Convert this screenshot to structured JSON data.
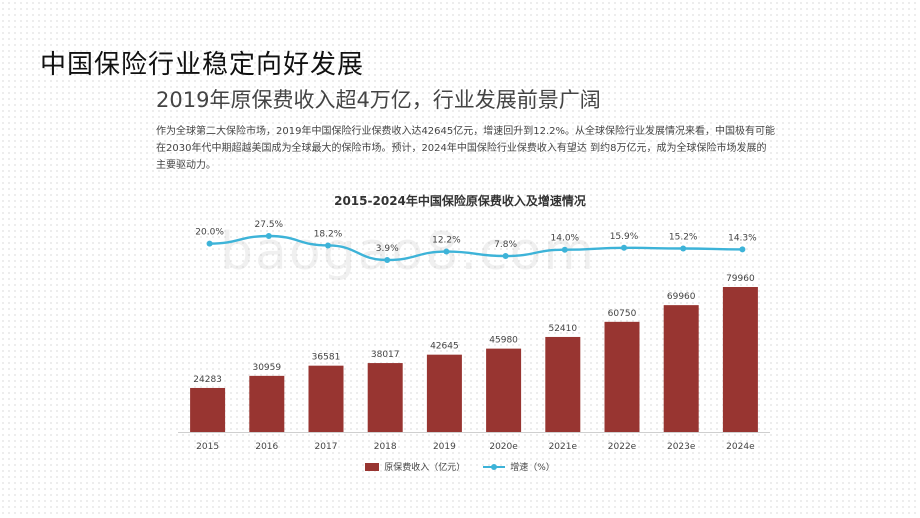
{
  "slide": {
    "title": "中国保险行业稳定向好发展",
    "subtitle": "2019年原保费收入超4万亿，行业发展前景广阔",
    "intro": "作为全球第二大保险市场，2019年中国保险行业保费收入达42645亿元，增速回升到12.2%。从全球保险行业发展情况来看，中国极有可能在2030年代中期超越美国成为全球最大的保险市场。预计，2024年中国保险行业保费收入有望达 到约8万亿元，成为全球保险市场发展的主要驱动力。",
    "watermark": "baogao8.com"
  },
  "colors": {
    "bar": "#983531",
    "line": "#3db3d8"
  },
  "chart_data": {
    "type": "bar",
    "title": "2015-2024年中国保险原保费收入及增速情况",
    "categories": [
      "2015",
      "2016",
      "2017",
      "2018",
      "2019",
      "2020e",
      "2021e",
      "2022e",
      "2023e",
      "2024e"
    ],
    "series": [
      {
        "name": "原保费收入（亿元）",
        "type": "bar",
        "values": [
          24283,
          30959,
          36581,
          38017,
          42645,
          45980,
          52410,
          60750,
          69960,
          79960
        ],
        "labels": [
          "24283",
          "30959",
          "36581",
          "38017",
          "42645",
          "45980",
          "52410",
          "60750",
          "69960",
          "79960"
        ]
      },
      {
        "name": "增速（%）",
        "type": "line",
        "values": [
          20.0,
          27.5,
          18.2,
          3.9,
          12.2,
          7.8,
          14.0,
          15.9,
          15.2,
          14.3
        ],
        "labels": [
          "20.0%",
          "27.5%",
          "18.2%",
          "3.9%",
          "12.2%",
          "7.8%",
          "14.0%",
          "15.9%",
          "15.2%",
          "14.3%"
        ]
      }
    ],
    "grid": false,
    "legend_position": "bottom"
  }
}
